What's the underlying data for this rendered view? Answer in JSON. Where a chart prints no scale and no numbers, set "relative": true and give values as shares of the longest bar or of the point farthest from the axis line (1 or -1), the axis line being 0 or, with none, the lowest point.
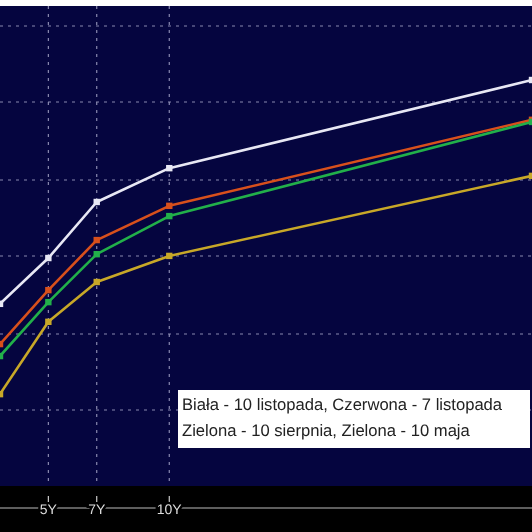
{
  "chart_data": {
    "type": "line",
    "relative": true,
    "x": [
      3,
      5,
      7,
      10,
      25
    ],
    "series": [
      {
        "color": "#e8e8f4",
        "values": [
          0.477,
          0.584,
          0.715,
          0.794,
          1
        ]
      },
      {
        "color": "#d8501c",
        "values": [
          0.383,
          0.509,
          0.626,
          0.706,
          0.907
        ]
      },
      {
        "color": "#22b04a",
        "values": [
          0.355,
          0.481,
          0.593,
          0.682,
          0.902
        ]
      },
      {
        "color": "#c8a828",
        "values": [
          0.266,
          0.435,
          0.528,
          0.589,
          0.776
        ]
      }
    ],
    "xlim": [
      3,
      25
    ],
    "xticks": [
      {
        "value": 5,
        "label": "5Y"
      },
      {
        "value": 7,
        "label": "7Y"
      },
      {
        "value": 10,
        "label": "10Y"
      }
    ],
    "grid": true,
    "marker": "square",
    "line_style": "solid",
    "annotations": [
      "Biała - 10 listopada, Czerwona - 7 listopada",
      "Zielona - 10 sierpnia, Zielona - 10 maja"
    ]
  }
}
